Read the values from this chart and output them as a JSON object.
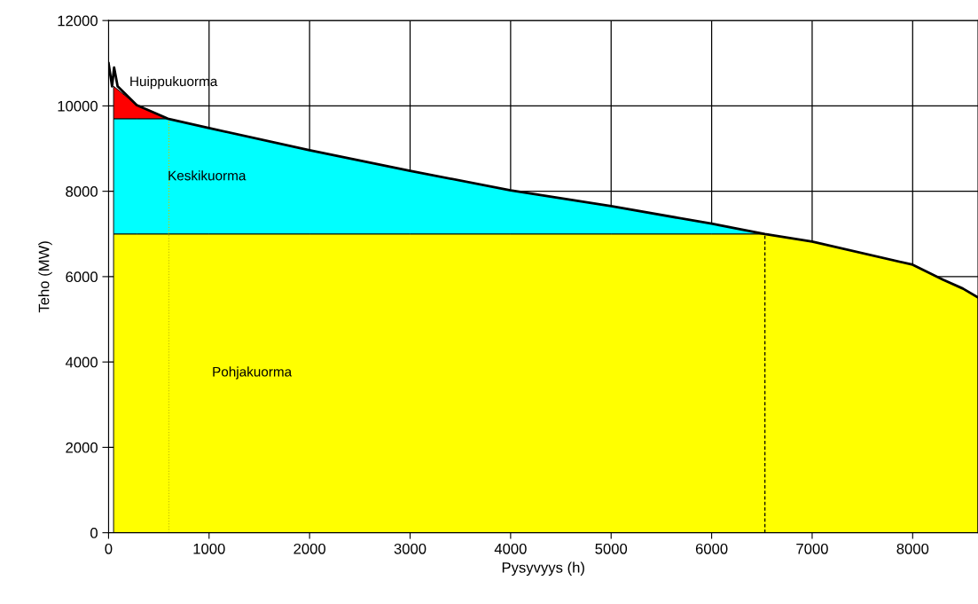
{
  "chart_data": {
    "type": "area",
    "stacked": true,
    "xlabel": "Pysyvyys (h)",
    "ylabel": "Teho (MW)",
    "x": [
      50,
      280,
      590,
      1000,
      2000,
      3000,
      4000,
      5000,
      6000,
      6530,
      7000,
      8000,
      8300,
      8500,
      8650
    ],
    "series": [
      {
        "color": "#ffff00",
        "values": [
          7000,
          7000,
          7000,
          7000,
          7000,
          7000,
          7000,
          7000,
          7000,
          7000,
          6820,
          6280,
          5930,
          5720,
          5510
        ]
      },
      {
        "color": "#00ffff",
        "values": [
          2700,
          2700,
          2700,
          2480,
          1960,
          1480,
          1020,
          650,
          240,
          0,
          0,
          0,
          0,
          0,
          0
        ]
      },
      {
        "color": "#ff0000",
        "values": [
          760,
          320,
          0,
          0,
          0,
          0,
          0,
          0,
          0,
          0,
          0,
          0,
          0,
          0,
          0
        ]
      },
      {
        "type": "line",
        "color": "#000000",
        "x": [
          0,
          35,
          55,
          90,
          280,
          590,
          1000,
          2000,
          3000,
          4000,
          5000,
          6000,
          6530,
          7000,
          8000,
          8300,
          8500,
          8650
        ],
        "values": [
          11000,
          10460,
          10900,
          10460,
          10020,
          9700,
          9480,
          8960,
          8480,
          8020,
          7650,
          7240,
          7000,
          6820,
          6280,
          5930,
          5720,
          5510
        ]
      }
    ],
    "xlim": [
      0,
      8650
    ],
    "xticks": [
      0,
      1000,
      2000,
      3000,
      4000,
      5000,
      6000,
      7000,
      8000
    ],
    "ylim": [
      0,
      12000
    ],
    "yticks": [
      0,
      2000,
      4000,
      6000,
      8000,
      10000,
      12000
    ],
    "grid": true,
    "ref_lines": [
      {
        "axis": "x",
        "value": 600,
        "color": "#c8c800",
        "line_style": "dotted"
      },
      {
        "axis": "x",
        "value": 6530,
        "color": "#000000",
        "line_style": "dashed"
      }
    ],
    "annotations": [
      "Huippukuorma",
      "Keskikuorma",
      "Pohjakuorma"
    ]
  }
}
